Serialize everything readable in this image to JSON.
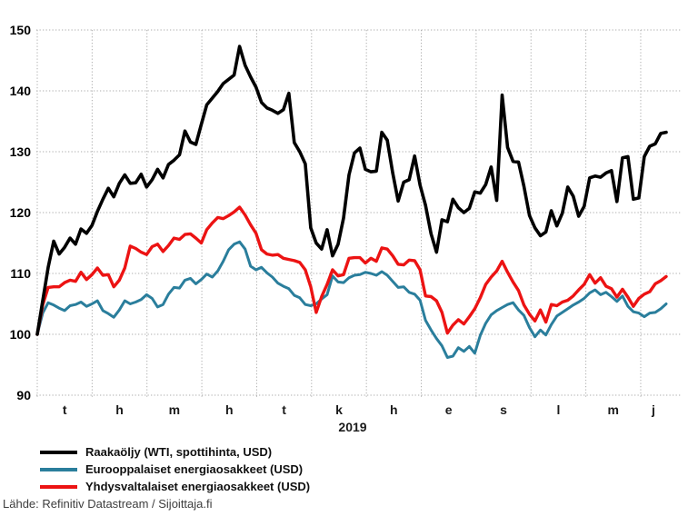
{
  "page": {
    "background": "#ffffff"
  },
  "source": "Lähde: Refinitiv Datastream / Sijoittaja.fi",
  "chart_data": {
    "type": "line",
    "title": "",
    "x_axis_title": "2019",
    "x_tick_labels": [
      "t",
      "h",
      "m",
      "h",
      "t",
      "k",
      "h",
      "e",
      "s",
      "l",
      "m",
      "j"
    ],
    "y_ticks": [
      90,
      100,
      110,
      120,
      130,
      140,
      150
    ],
    "ylim": [
      90,
      150
    ],
    "grid": "dotted",
    "grid_color": "#adadad",
    "legend_position": "bottom-left",
    "series": [
      {
        "name": "Raakaöljy (WTI, spottihinta, USD)",
        "color": "#000000",
        "values": [
          100,
          105.5,
          111,
          115.3,
          113.2,
          114.3,
          115.8,
          114.8,
          117.3,
          116.6,
          117.9,
          120.2,
          122.2,
          124,
          122.6,
          124.8,
          126.2,
          124.8,
          124.9,
          126.3,
          124.2,
          125.4,
          127.1,
          125.7,
          127.9,
          128.6,
          129.5,
          133.4,
          131.6,
          131.2,
          134.5,
          137.7,
          138.8,
          139.9,
          141.2,
          141.9,
          142.6,
          147.3,
          144.2,
          142.3,
          140.6,
          138.1,
          137.2,
          136.8,
          136.3,
          136.9,
          139.6,
          131.5,
          130,
          128,
          117.5,
          115,
          114,
          117.2,
          112.9,
          114.8,
          119.1,
          126.2,
          129.8,
          130.6,
          127.1,
          126.7,
          126.8,
          133.2,
          131.9,
          126.5,
          121.9,
          125,
          125.4,
          129.3,
          124.5,
          121.2,
          116.5,
          113.5,
          118.8,
          118.5,
          122.2,
          120.8,
          120,
          120.7,
          123.4,
          123.2,
          124.6,
          127.5,
          122,
          139.3,
          130.7,
          128.4,
          128.3,
          124.3,
          119.5,
          117.5,
          116.2,
          116.8,
          120.3,
          117.8,
          119.9,
          124.2,
          122.7,
          119.4,
          121,
          125.7,
          126,
          125.8,
          126.5,
          126.9,
          121.8,
          129,
          129.2,
          122.2,
          122.4,
          129.2,
          130.9,
          131.3,
          133,
          133.2
        ]
      },
      {
        "name": "Eurooppalaiset energiaosakkeet (USD)",
        "color": "#2a7e9c",
        "values": [
          100,
          103.5,
          105.2,
          104.8,
          104.3,
          103.9,
          104.7,
          104.9,
          105.3,
          104.6,
          105,
          105.5,
          103.9,
          103.4,
          102.8,
          104,
          105.5,
          105,
          105.3,
          105.7,
          106.5,
          105.9,
          104.5,
          104.9,
          106.6,
          107.7,
          107.6,
          108.9,
          109.2,
          108.3,
          109,
          109.9,
          109.4,
          110.4,
          112,
          113.9,
          114.8,
          115.2,
          114,
          111.2,
          110.6,
          111,
          110.1,
          109.4,
          108.4,
          107.9,
          107.5,
          106.4,
          106,
          104.9,
          104.7,
          105,
          105.8,
          106.5,
          109.6,
          108.6,
          108.5,
          109.3,
          109.7,
          109.8,
          110.2,
          110,
          109.7,
          110.3,
          109.7,
          108.7,
          107.7,
          107.8,
          106.9,
          106.6,
          105.6,
          102.3,
          100.7,
          99.3,
          98.1,
          96.2,
          96.4,
          97.8,
          97.2,
          98,
          96.9,
          99.8,
          101.8,
          103.2,
          103.9,
          104.4,
          104.9,
          105.2,
          104,
          103.1,
          101.1,
          99.6,
          100.7,
          99.9,
          101.6,
          103,
          103.6,
          104.2,
          104.8,
          105.3,
          105.9,
          106.8,
          107.3,
          106.5,
          106.9,
          106.2,
          105.4,
          106.3,
          104.6,
          103.7,
          103.5,
          102.9,
          103.5,
          103.6,
          104.2,
          105
        ]
      },
      {
        "name": "Yhdysvaltalaiset energiaosakkeet (USD)",
        "color": "#ec1313",
        "values": [
          100,
          104.8,
          107.7,
          107.8,
          107.8,
          108.5,
          108.9,
          108.7,
          110.2,
          109,
          109.8,
          110.9,
          109.7,
          109.8,
          107.8,
          108.9,
          110.9,
          114.5,
          114.1,
          113.5,
          113.1,
          114.4,
          114.8,
          113.6,
          114.6,
          115.8,
          115.6,
          116.4,
          116.5,
          115.8,
          115,
          117.2,
          118.3,
          119.2,
          119,
          119.5,
          120.1,
          120.9,
          119.6,
          118,
          116.6,
          113.9,
          113.2,
          113,
          113.1,
          112.5,
          112.3,
          112.1,
          111.8,
          110.6,
          107.8,
          103.6,
          106.2,
          108.2,
          110.6,
          109.6,
          109.8,
          112.5,
          112.6,
          112.6,
          111.7,
          112.5,
          112,
          114.2,
          114,
          112.9,
          111.5,
          111.4,
          112.2,
          112.1,
          110.6,
          106.3,
          106.2,
          105.5,
          103.6,
          100.2,
          101.5,
          102.4,
          101.7,
          102.9,
          104.2,
          106,
          108.2,
          109.4,
          110.4,
          112,
          110.2,
          108.6,
          107.2,
          104.8,
          103.3,
          102.2,
          104,
          102,
          104.9,
          104.7,
          105.3,
          105.6,
          106.3,
          107.3,
          108.2,
          109.8,
          108.4,
          109.3,
          107.9,
          107.5,
          106.1,
          107.4,
          106.1,
          104.6,
          105.9,
          106.6,
          107,
          108.3,
          108.8,
          109.5
        ]
      }
    ]
  }
}
